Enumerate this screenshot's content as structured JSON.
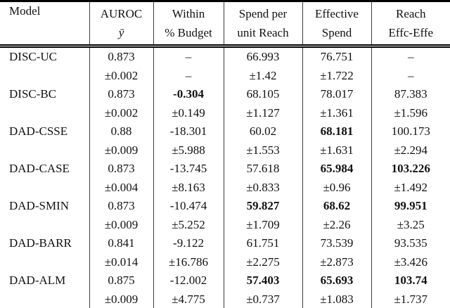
{
  "table": {
    "headers": {
      "model": "Model",
      "cols": [
        {
          "line1": "AUROC",
          "line2": "ȳ"
        },
        {
          "line1": "Within",
          "line2": "% Budget"
        },
        {
          "line1": "Spend per",
          "line2": "unit Reach"
        },
        {
          "line1": "Effective",
          "line2": "Spend"
        },
        {
          "line1": "Reach",
          "line2": "Effc-Effe"
        }
      ]
    },
    "rows": [
      {
        "model": "DISC-UC",
        "cells": [
          {
            "v": "0.873",
            "e": "±0.002",
            "bold": false
          },
          {
            "v": "–",
            "e": "–",
            "bold": false
          },
          {
            "v": "66.993",
            "e": "±1.42",
            "bold": false
          },
          {
            "v": "76.751",
            "e": "±1.722",
            "bold": false
          },
          {
            "v": "–",
            "e": "–",
            "bold": false
          }
        ]
      },
      {
        "model": "DISC-BC",
        "cells": [
          {
            "v": "0.873",
            "e": "±0.002",
            "bold": false
          },
          {
            "v": "-0.304",
            "e": "±0.149",
            "bold": true
          },
          {
            "v": "68.105",
            "e": "±1.127",
            "bold": false
          },
          {
            "v": "78.017",
            "e": "±1.361",
            "bold": false
          },
          {
            "v": "87.383",
            "e": "±1.596",
            "bold": false
          }
        ]
      },
      {
        "model": "DAD-CSSE",
        "cells": [
          {
            "v": "0.88",
            "e": "±0.009",
            "bold": false
          },
          {
            "v": "-18.301",
            "e": "±5.988",
            "bold": false
          },
          {
            "v": "60.02",
            "e": "±1.553",
            "bold": false
          },
          {
            "v": "68.181",
            "e": "±1.631",
            "bold": true
          },
          {
            "v": "100.173",
            "e": "±2.294",
            "bold": false
          }
        ]
      },
      {
        "model": "DAD-CASE",
        "cells": [
          {
            "v": "0.873",
            "e": "±0.004",
            "bold": false
          },
          {
            "v": "-13.745",
            "e": "±8.163",
            "bold": false
          },
          {
            "v": "57.618",
            "e": "±0.833",
            "bold": false
          },
          {
            "v": "65.984",
            "e": "±0.96",
            "bold": true
          },
          {
            "v": "103.226",
            "e": "±1.492",
            "bold": true
          }
        ]
      },
      {
        "model": "DAD-SMIN",
        "cells": [
          {
            "v": "0.873",
            "e": "±0.009",
            "bold": false
          },
          {
            "v": "-10.474",
            "e": "±5.252",
            "bold": false
          },
          {
            "v": "59.827",
            "e": "±1.709",
            "bold": true
          },
          {
            "v": "68.62",
            "e": "±2.26",
            "bold": true
          },
          {
            "v": "99.951",
            "e": "±3.25",
            "bold": true
          }
        ]
      },
      {
        "model": "DAD-BARR",
        "cells": [
          {
            "v": "0.841",
            "e": "±0.014",
            "bold": false
          },
          {
            "v": "-9.122",
            "e": "±16.786",
            "bold": false
          },
          {
            "v": "61.751",
            "e": "±2.275",
            "bold": false
          },
          {
            "v": "73.539",
            "e": "±2.873",
            "bold": false
          },
          {
            "v": "93.535",
            "e": "±3.426",
            "bold": false
          }
        ]
      },
      {
        "model": "DAD-ALM",
        "cells": [
          {
            "v": "0.875",
            "e": "±0.009",
            "bold": false
          },
          {
            "v": "-12.002",
            "e": "±4.775",
            "bold": false
          },
          {
            "v": "57.403",
            "e": "±0.737",
            "bold": true
          },
          {
            "v": "65.693",
            "e": "±1.083",
            "bold": true
          },
          {
            "v": "103.74",
            "e": "±1.737",
            "bold": true
          }
        ]
      }
    ]
  },
  "colors": {
    "background": "#ffffff",
    "text": "#111111",
    "horizontal_rule": "#000000",
    "vertical_rule": "#3d3d3d"
  }
}
